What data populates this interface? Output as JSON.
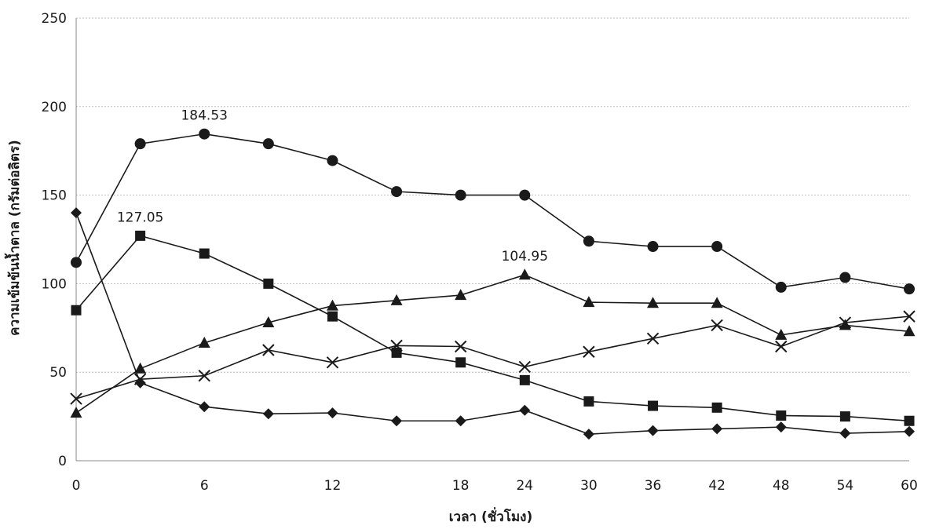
{
  "chart_data": {
    "type": "line",
    "title": "",
    "xlabel": "เวลา (ชั่วโมง)",
    "ylabel": "ความเข้มข้นน้ำตาล (กรัมต่อลิตร)",
    "x": [
      0,
      3,
      6,
      9,
      12,
      15,
      18,
      24,
      30,
      36,
      42,
      48,
      54,
      60
    ],
    "x_tick_labels": [
      "0",
      "6",
      "12",
      "18",
      "24",
      "30",
      "36",
      "42",
      "48",
      "54",
      "60"
    ],
    "y_tick_labels": [
      "0",
      "50",
      "100",
      "150",
      "200",
      "250"
    ],
    "ylim": [
      0,
      250
    ],
    "grid": true,
    "x_scale": "ordinal-category",
    "series": [
      {
        "marker": "diamond",
        "values": [
          140,
          44,
          30.5,
          26.5,
          27,
          22.5,
          22.5,
          28.5,
          15,
          17,
          18,
          19,
          15.5,
          16.5
        ]
      },
      {
        "marker": "square",
        "values": [
          85,
          127.05,
          117,
          100,
          81.5,
          61,
          55.5,
          45.5,
          33.5,
          31,
          30,
          25.5,
          25,
          22.5
        ]
      },
      {
        "marker": "triangle",
        "values": [
          27,
          52,
          66.5,
          78,
          87.5,
          90.5,
          93.5,
          104.95,
          89.5,
          89,
          89,
          71,
          76.5,
          73
        ]
      },
      {
        "marker": "x",
        "values": [
          35,
          46,
          48,
          62.5,
          55.5,
          65,
          64.5,
          53,
          61.5,
          69,
          76.5,
          64.5,
          78,
          81.5
        ]
      },
      {
        "marker": "circle",
        "values": [
          112,
          179,
          184.53,
          179,
          169.5,
          152,
          150,
          150,
          124,
          121,
          121,
          98,
          103.5,
          97
        ]
      }
    ],
    "annotations": [
      {
        "text": "184.53",
        "x": 6,
        "y": 184.53
      },
      {
        "text": "127.05",
        "x": 3,
        "y": 127.05
      },
      {
        "text": "104.95",
        "x": 24,
        "y": 104.95
      }
    ],
    "colors": {
      "line": "#1a1a1a",
      "grid": "#bdbdbd",
      "axis": "#888888"
    }
  }
}
